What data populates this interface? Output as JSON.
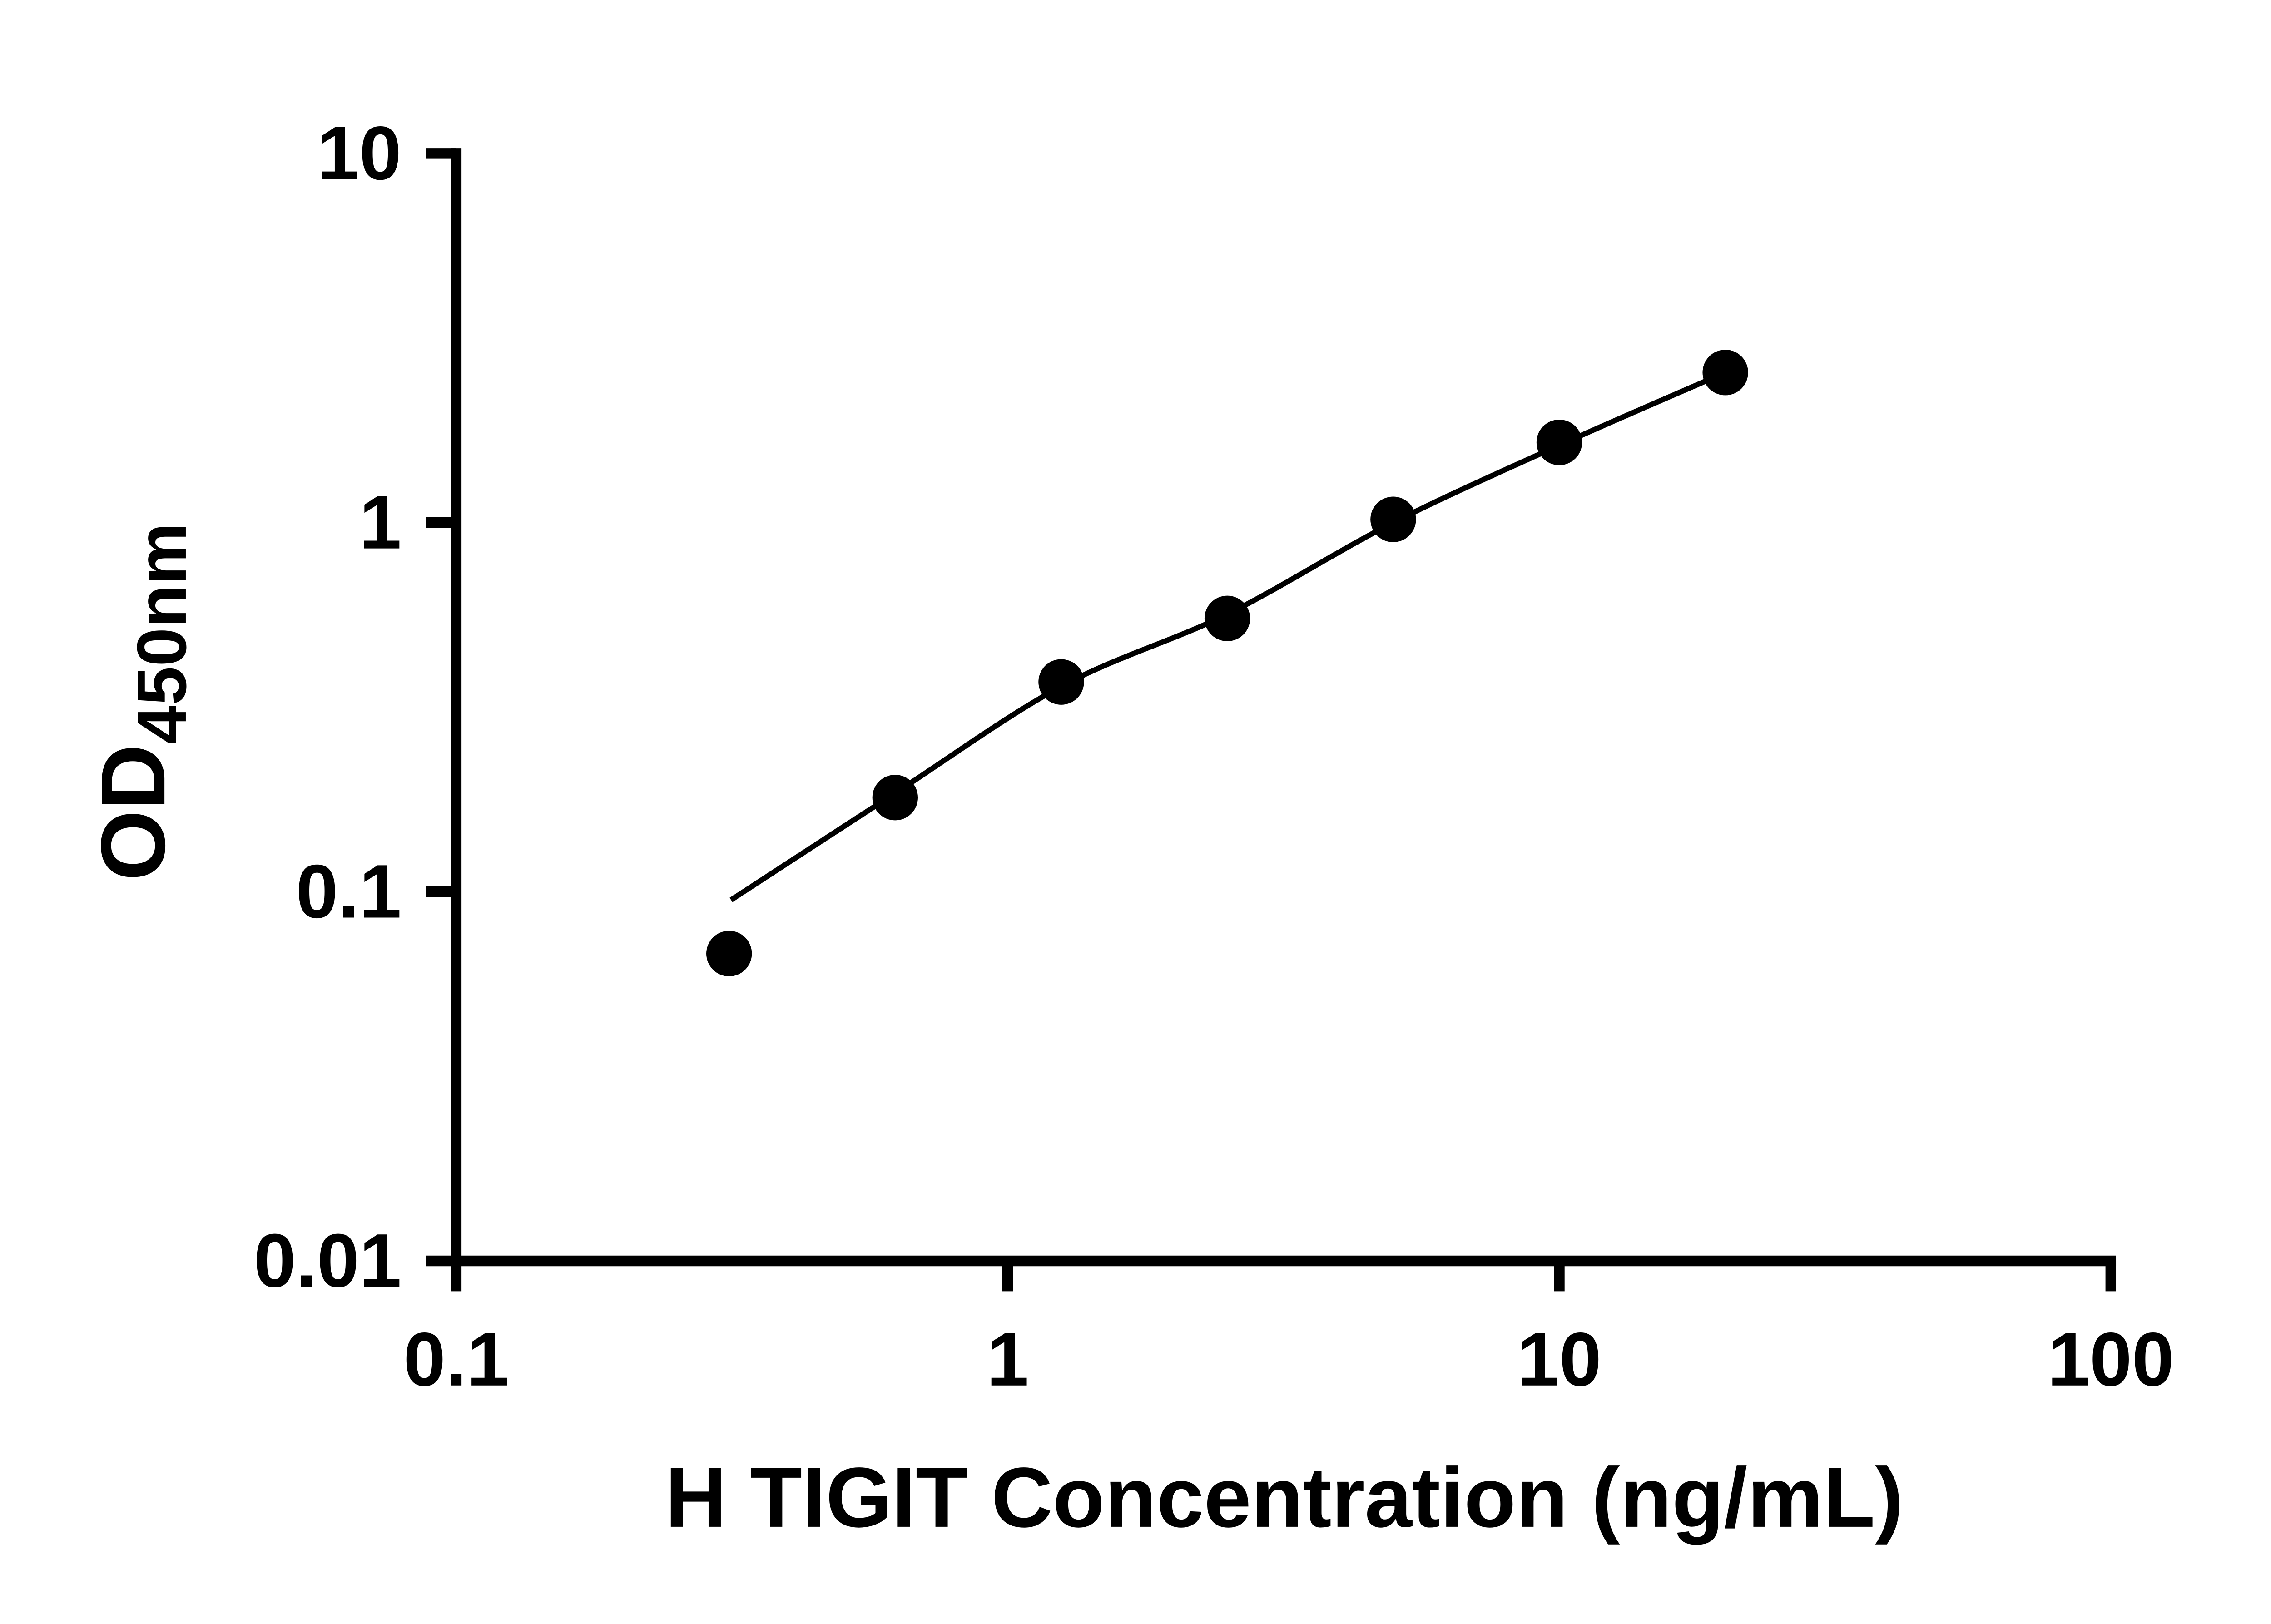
{
  "chart_data": {
    "type": "scatter",
    "title": "",
    "xlabel": "H TIGIT Concentration (ng/mL)",
    "ylabel_base": "OD",
    "ylabel_sub": "450nm",
    "xscale": "log",
    "yscale": "log",
    "xlim": [
      0.1,
      100
    ],
    "ylim": [
      0.01,
      10
    ],
    "x_ticks": [
      0.1,
      1,
      10,
      100
    ],
    "x_tick_labels": [
      "0.1",
      "1",
      "10",
      "100"
    ],
    "y_ticks": [
      0.01,
      0.1,
      1,
      10
    ],
    "y_tick_labels": [
      "0.01",
      "0.1",
      "1",
      "10"
    ],
    "x": [
      0.3125,
      0.625,
      1.25,
      2.5,
      5,
      10,
      20
    ],
    "y": [
      0.068,
      0.18,
      0.37,
      0.55,
      1.02,
      1.65,
      2.55
    ],
    "curve": [
      [
        0.315,
        0.095
      ],
      [
        0.625,
        0.185
      ],
      [
        1.25,
        0.36
      ],
      [
        2.5,
        0.565
      ],
      [
        5,
        1.0
      ],
      [
        10,
        1.62
      ],
      [
        20,
        2.55
      ]
    ],
    "grid": "off",
    "legend": "none",
    "marker_color": "#000000",
    "line_color": "#000000",
    "axis_color": "#000000",
    "background": "#ffffff"
  }
}
